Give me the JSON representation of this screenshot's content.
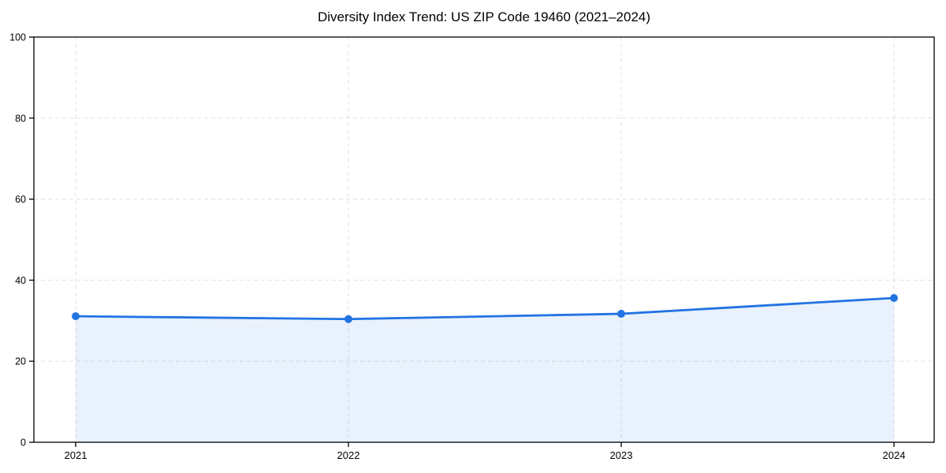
{
  "chart_data": {
    "type": "area",
    "title": "Diversity Index Trend: US ZIP Code 19460 (2021–2024)",
    "xlabel": "",
    "ylabel": "",
    "categories": [
      "2021",
      "2022",
      "2023",
      "2024"
    ],
    "series": [
      {
        "name": "Diversity Index",
        "values": [
          31.1,
          30.4,
          31.7,
          35.6
        ]
      }
    ],
    "ylim": [
      0,
      100
    ],
    "yticks": [
      0,
      20,
      40,
      60,
      80,
      100
    ],
    "grid": "dashed both axes",
    "legend": "none",
    "line_color": "#2273e3",
    "fill_color": "rgba(34,115,227,0.10)",
    "marker": "circle",
    "grid_color": "#e0e0e0",
    "spine_color": "#000000"
  }
}
